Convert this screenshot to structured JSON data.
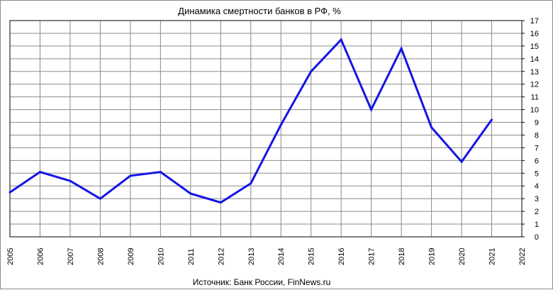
{
  "chart_data": {
    "type": "line",
    "title": "Динамика  смертности  банков  в РФ, %",
    "source": "Источник: Банк России, FinNews.ru",
    "xlabel": "",
    "ylabel": "",
    "x_ticks": [
      "2005",
      "2006",
      "2007",
      "2008",
      "2009",
      "2010",
      "2011",
      "2012",
      "2013",
      "2014",
      "2015",
      "2016",
      "2017",
      "2018",
      "2019",
      "2020",
      "2021",
      "2022"
    ],
    "y_ticks": [
      "0",
      "1",
      "2",
      "3",
      "4",
      "5",
      "6",
      "7",
      "8",
      "9",
      "10",
      "11",
      "12",
      "13",
      "14",
      "15",
      "16",
      "17"
    ],
    "xlim": [
      2005,
      2022
    ],
    "ylim": [
      0,
      17
    ],
    "y_axis_side": "right",
    "grid": true,
    "legend": "none",
    "series": [
      {
        "color": "#1414e6",
        "x": [
          2005,
          2006,
          2007,
          2008,
          2009,
          2010,
          2011,
          2012,
          2013,
          2014,
          2015,
          2016,
          2017,
          2018,
          2019,
          2020,
          2021
        ],
        "values": [
          3.5,
          5.1,
          4.4,
          3.0,
          4.8,
          5.1,
          3.4,
          2.7,
          4.2,
          8.8,
          13.0,
          15.5,
          10.0,
          14.8,
          8.6,
          5.9,
          9.2
        ]
      }
    ]
  }
}
